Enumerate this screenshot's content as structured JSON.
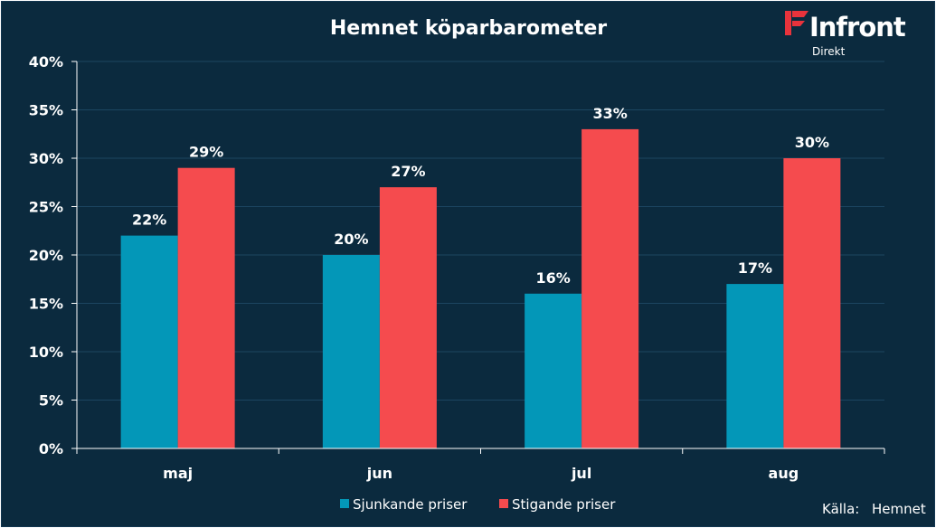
{
  "chart_data": {
    "type": "bar",
    "title": "Hemnet köparbarometer",
    "categories": [
      "maj",
      "jun",
      "jul",
      "aug"
    ],
    "series": [
      {
        "name": "Sjunkande priser",
        "values": [
          22,
          20,
          16,
          17
        ],
        "color": "#0397b8"
      },
      {
        "name": "Stigande priser",
        "values": [
          29,
          27,
          33,
          30
        ],
        "color": "#f54b4e"
      }
    ],
    "data_labels": [
      [
        "22%",
        "20%",
        "16%",
        "17%"
      ],
      [
        "29%",
        "27%",
        "33%",
        "30%"
      ]
    ],
    "ylim": [
      0,
      40
    ],
    "yticks": [
      0,
      5,
      10,
      15,
      20,
      25,
      30,
      35,
      40
    ],
    "ytick_labels": [
      "0%",
      "5%",
      "10%",
      "15%",
      "20%",
      "25%",
      "30%",
      "35%",
      "40%"
    ],
    "xlabel": "",
    "ylabel": "",
    "grid": true,
    "legend_position": "bottom"
  },
  "source": {
    "label": "Källa:",
    "name": "Hemnet"
  },
  "brand": {
    "name": "Infront",
    "sub": "Direkt",
    "icon": "infront-logo-icon",
    "accent": "#e8333c"
  },
  "colors": {
    "background": "#0b2a3e",
    "grid": "#1c4560",
    "axis": "#ffffff"
  }
}
